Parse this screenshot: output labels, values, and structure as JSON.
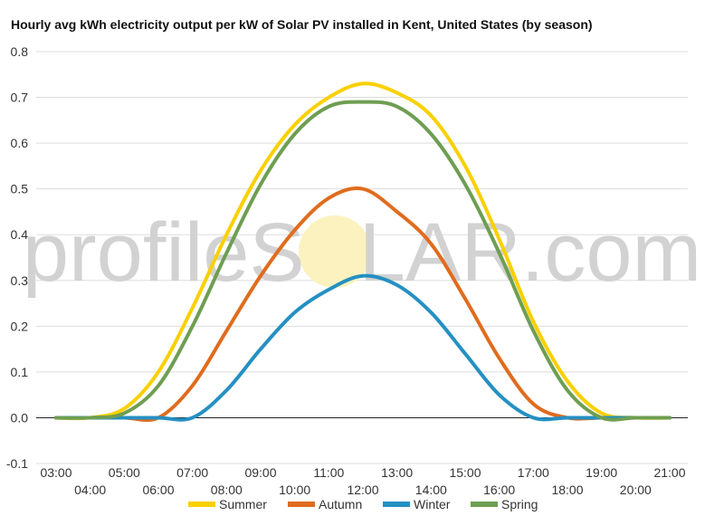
{
  "chart_data": {
    "type": "line",
    "title": "Hourly avg kWh electricity output per kW of Solar PV installed in Kent, United States (by season)",
    "watermark": {
      "prefix": "profileS",
      "suffix": "LAR.com"
    },
    "xlabel": "",
    "ylabel": "",
    "x": [
      "03:00",
      "04:00",
      "05:00",
      "06:00",
      "07:00",
      "08:00",
      "09:00",
      "10:00",
      "11:00",
      "12:00",
      "13:00",
      "14:00",
      "15:00",
      "16:00",
      "17:00",
      "18:00",
      "19:00",
      "20:00",
      "21:00"
    ],
    "ylim": [
      -0.1,
      0.8
    ],
    "yticks": [
      "-0.1",
      "0.0",
      "0.1",
      "0.2",
      "0.3",
      "0.4",
      "0.5",
      "0.6",
      "0.7",
      "0.8"
    ],
    "grid": true,
    "legend": "bottom",
    "series": [
      {
        "name": "Summer",
        "color": "#F9D000",
        "values": [
          0.0,
          0.0,
          0.02,
          0.1,
          0.24,
          0.4,
          0.54,
          0.64,
          0.7,
          0.73,
          0.71,
          0.66,
          0.55,
          0.39,
          0.21,
          0.08,
          0.01,
          0.0,
          0.0
        ]
      },
      {
        "name": "Autumn",
        "color": "#E06C1E",
        "values": [
          0.0,
          0.0,
          0.0,
          0.0,
          0.07,
          0.19,
          0.31,
          0.41,
          0.48,
          0.5,
          0.45,
          0.38,
          0.26,
          0.13,
          0.03,
          0.0,
          0.0,
          0.0,
          0.0
        ]
      },
      {
        "name": "Winter",
        "color": "#2590C2",
        "values": [
          0.0,
          0.0,
          0.0,
          0.0,
          0.0,
          0.06,
          0.15,
          0.23,
          0.28,
          0.31,
          0.29,
          0.23,
          0.14,
          0.05,
          0.0,
          0.0,
          0.0,
          0.0,
          0.0
        ]
      },
      {
        "name": "Spring",
        "color": "#6E9E52",
        "values": [
          0.0,
          0.0,
          0.01,
          0.07,
          0.2,
          0.36,
          0.51,
          0.62,
          0.68,
          0.69,
          0.68,
          0.62,
          0.51,
          0.36,
          0.19,
          0.06,
          0.0,
          0.0,
          0.0
        ]
      }
    ]
  }
}
